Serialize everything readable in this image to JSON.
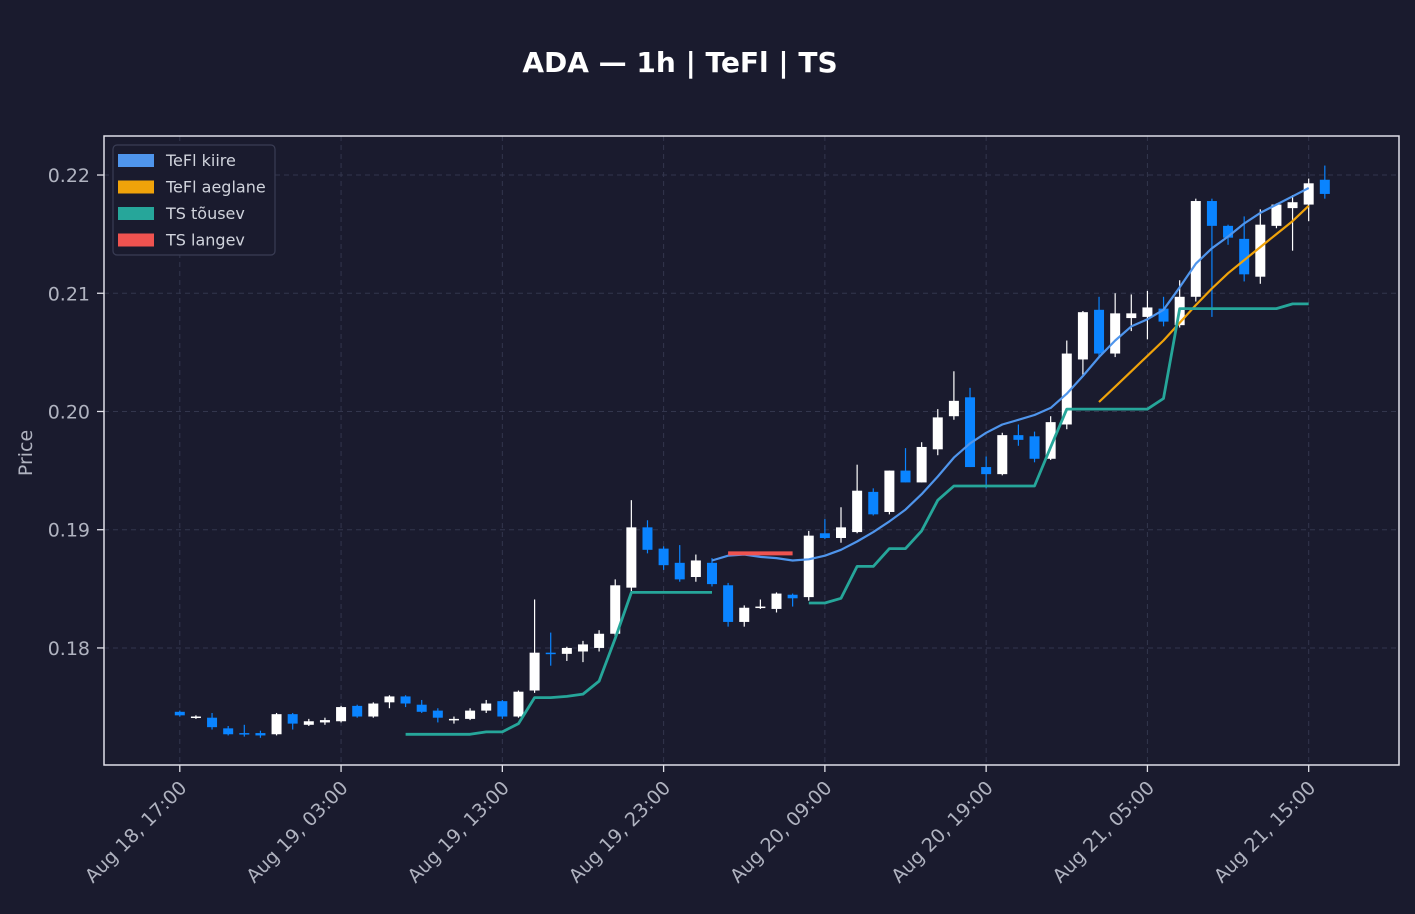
{
  "chart_data": {
    "type": "candlestick",
    "title": "ADA — 1h  |  TeFl  |  TS",
    "xlabel": "",
    "ylabel": "Price",
    "ylim": [
      0.1701,
      0.2233
    ],
    "x_range_hours": [
      -4.7,
      75.6
    ],
    "y_ticks": [
      {
        "value": 0.18,
        "label": "0.18"
      },
      {
        "value": 0.19,
        "label": "0.19"
      },
      {
        "value": 0.2,
        "label": "0.20"
      },
      {
        "value": 0.21,
        "label": "0.21"
      },
      {
        "value": 0.22,
        "label": "0.22"
      }
    ],
    "x_ticks": [
      {
        "hour": 0,
        "label": "Aug 18, 17:00"
      },
      {
        "hour": 10,
        "label": "Aug 19, 03:00"
      },
      {
        "hour": 20,
        "label": "Aug 19, 13:00"
      },
      {
        "hour": 30,
        "label": "Aug 19, 23:00"
      },
      {
        "hour": 40,
        "label": "Aug 20, 09:00"
      },
      {
        "hour": 50,
        "label": "Aug 20, 19:00"
      },
      {
        "hour": 60,
        "label": "Aug 21, 05:00"
      },
      {
        "hour": 70,
        "label": "Aug 21, 15:00"
      }
    ],
    "grid": true,
    "legend_position": "top-left",
    "colors": {
      "background": "#1a1b2e",
      "up_candle": "#ffffff",
      "down_candle": "#0a84ff",
      "grid": "#33364d",
      "frame": "#e0e0e8"
    },
    "candles": [
      [
        0.1746,
        0.1747,
        0.1742,
        0.1743
      ],
      [
        0.1741,
        0.1743,
        0.174,
        0.1742
      ],
      [
        0.1741,
        0.1745,
        0.1731,
        0.1733
      ],
      [
        0.1732,
        0.1734,
        0.1726,
        0.1727
      ],
      [
        0.1728,
        0.1735,
        0.1725,
        0.1727
      ],
      [
        0.1728,
        0.173,
        0.1724,
        0.1726
      ],
      [
        0.1727,
        0.1745,
        0.1726,
        0.1744
      ],
      [
        0.1744,
        0.1745,
        0.1731,
        0.1736
      ],
      [
        0.1735,
        0.174,
        0.1734,
        0.1738
      ],
      [
        0.1737,
        0.1741,
        0.1735,
        0.1739
      ],
      [
        0.1738,
        0.1751,
        0.1737,
        0.175
      ],
      [
        0.1751,
        0.1752,
        0.1741,
        0.1742
      ],
      [
        0.1742,
        0.1754,
        0.1741,
        0.1753
      ],
      [
        0.1754,
        0.176,
        0.1749,
        0.1759
      ],
      [
        0.1759,
        0.176,
        0.175,
        0.1753
      ],
      [
        0.1752,
        0.1756,
        0.1745,
        0.1746
      ],
      [
        0.1747,
        0.1749,
        0.1737,
        0.1741
      ],
      [
        0.174,
        0.1742,
        0.1736,
        0.174
      ],
      [
        0.174,
        0.1749,
        0.1739,
        0.1747
      ],
      [
        0.1747,
        0.1756,
        0.1745,
        0.1753
      ],
      [
        0.1755,
        0.1756,
        0.174,
        0.1742
      ],
      [
        0.1742,
        0.1764,
        0.1741,
        0.1763
      ],
      [
        0.1764,
        0.1841,
        0.1762,
        0.1796
      ],
      [
        0.1796,
        0.1813,
        0.1785,
        0.1795
      ],
      [
        0.1795,
        0.1801,
        0.1789,
        0.18
      ],
      [
        0.1797,
        0.1806,
        0.1788,
        0.1803
      ],
      [
        0.18,
        0.1815,
        0.1797,
        0.1812
      ],
      [
        0.1812,
        0.1858,
        0.181,
        0.1853
      ],
      [
        0.1851,
        0.1925,
        0.1848,
        0.1902
      ],
      [
        0.1902,
        0.1908,
        0.188,
        0.1883
      ],
      [
        0.1884,
        0.1886,
        0.1866,
        0.187
      ],
      [
        0.1872,
        0.1887,
        0.1856,
        0.1858
      ],
      [
        0.186,
        0.1879,
        0.1856,
        0.1874
      ],
      [
        0.1872,
        0.1876,
        0.1852,
        0.1854
      ],
      [
        0.1853,
        0.1855,
        0.1818,
        0.1822
      ],
      [
        0.1822,
        0.1836,
        0.1818,
        0.1834
      ],
      [
        0.1834,
        0.1841,
        0.1833,
        0.1835
      ],
      [
        0.1833,
        0.1847,
        0.183,
        0.1846
      ],
      [
        0.1845,
        0.1846,
        0.1835,
        0.1842
      ],
      [
        0.1843,
        0.1899,
        0.184,
        0.1895
      ],
      [
        0.1897,
        0.1909,
        0.1892,
        0.1893
      ],
      [
        0.1893,
        0.1919,
        0.1889,
        0.1902
      ],
      [
        0.1898,
        0.1955,
        0.1897,
        0.1933
      ],
      [
        0.1932,
        0.1935,
        0.1912,
        0.1913
      ],
      [
        0.1915,
        0.195,
        0.1913,
        0.195
      ],
      [
        0.195,
        0.1969,
        0.194,
        0.194
      ],
      [
        0.194,
        0.1974,
        0.194,
        0.197
      ],
      [
        0.1968,
        0.2002,
        0.1963,
        0.1995
      ],
      [
        0.1996,
        0.2034,
        0.1993,
        0.2009
      ],
      [
        0.2012,
        0.202,
        0.1953,
        0.1953
      ],
      [
        0.1953,
        0.1962,
        0.1935,
        0.1947
      ],
      [
        0.1947,
        0.1982,
        0.1946,
        0.198
      ],
      [
        0.198,
        0.1989,
        0.1971,
        0.1976
      ],
      [
        0.1979,
        0.1983,
        0.1957,
        0.196
      ],
      [
        0.196,
        0.1996,
        0.1959,
        0.1991
      ],
      [
        0.1989,
        0.206,
        0.1985,
        0.2049
      ],
      [
        0.2044,
        0.2085,
        0.2031,
        0.2084
      ],
      [
        0.2086,
        0.2097,
        0.2047,
        0.2049
      ],
      [
        0.2049,
        0.21,
        0.2046,
        0.2083
      ],
      [
        0.2079,
        0.2099,
        0.2068,
        0.2083
      ],
      [
        0.208,
        0.2102,
        0.2061,
        0.2088
      ],
      [
        0.2087,
        0.2097,
        0.2072,
        0.2076
      ],
      [
        0.2073,
        0.2111,
        0.2071,
        0.2097
      ],
      [
        0.2097,
        0.218,
        0.2093,
        0.2178
      ],
      [
        0.2178,
        0.218,
        0.208,
        0.2157
      ],
      [
        0.2157,
        0.2158,
        0.2141,
        0.2147
      ],
      [
        0.2146,
        0.2165,
        0.211,
        0.2116
      ],
      [
        0.2114,
        0.2171,
        0.2108,
        0.2158
      ],
      [
        0.2157,
        0.2176,
        0.2155,
        0.2175
      ],
      [
        0.2172,
        0.2183,
        0.2136,
        0.2177
      ],
      [
        0.2175,
        0.2197,
        0.2161,
        0.2193
      ],
      [
        0.2196,
        0.2208,
        0.218,
        0.2184
      ]
    ],
    "series": [
      {
        "name": "TeFl kiire",
        "color": "#4f95ec",
        "width": 2.2,
        "segments": [
          [
            [
              33,
              0.1874
            ],
            [
              34,
              0.1878
            ],
            [
              35,
              0.1879
            ],
            [
              36,
              0.1877
            ],
            [
              37,
              0.1876
            ],
            [
              38,
              0.1874
            ],
            [
              39,
              0.1875
            ],
            [
              40,
              0.1878
            ],
            [
              41,
              0.1883
            ],
            [
              42,
              0.189
            ],
            [
              43,
              0.1898
            ],
            [
              44,
              0.1907
            ],
            [
              45,
              0.1917
            ],
            [
              46,
              0.193
            ],
            [
              47,
              0.1945
            ],
            [
              48,
              0.1961
            ],
            [
              49,
              0.1973
            ],
            [
              50,
              0.1982
            ],
            [
              51,
              0.1989
            ],
            [
              52,
              0.1993
            ],
            [
              53,
              0.1997
            ],
            [
              54,
              0.2003
            ],
            [
              55,
              0.2015
            ],
            [
              56,
              0.203
            ],
            [
              57,
              0.2046
            ],
            [
              58,
              0.206
            ],
            [
              59,
              0.2072
            ],
            [
              60,
              0.2078
            ],
            [
              61,
              0.2086
            ],
            [
              62,
              0.2105
            ],
            [
              63,
              0.2125
            ],
            [
              64,
              0.2138
            ],
            [
              65,
              0.2148
            ],
            [
              66,
              0.2159
            ],
            [
              67,
              0.2168
            ],
            [
              68,
              0.2175
            ],
            [
              69,
              0.2182
            ],
            [
              70,
              0.2189
            ]
          ]
        ]
      },
      {
        "name": "TeFl aeglane",
        "color": "#f0a30a",
        "width": 2.2,
        "segments": [
          [
            [
              57,
              0.2008
            ],
            [
              58,
              0.2021
            ],
            [
              59,
              0.2034
            ],
            [
              60,
              0.2047
            ],
            [
              61,
              0.206
            ],
            [
              62,
              0.2075
            ],
            [
              63,
              0.209
            ],
            [
              64,
              0.2104
            ],
            [
              65,
              0.2117
            ],
            [
              66,
              0.2128
            ],
            [
              67,
              0.2139
            ],
            [
              68,
              0.215
            ],
            [
              69,
              0.2161
            ],
            [
              70,
              0.2174
            ]
          ]
        ]
      },
      {
        "name": "TS tõusev",
        "color": "#26a69a",
        "width": 2.8,
        "segments": [
          [
            [
              14,
              0.1727
            ],
            [
              15,
              0.1727
            ],
            [
              16,
              0.1727
            ],
            [
              17,
              0.1727
            ],
            [
              18,
              0.1727
            ],
            [
              19,
              0.1729
            ],
            [
              20,
              0.1729
            ],
            [
              21,
              0.1736
            ],
            [
              22,
              0.1758
            ],
            [
              23,
              0.1758
            ],
            [
              24,
              0.1759
            ],
            [
              25,
              0.1761
            ],
            [
              26,
              0.1772
            ],
            [
              27,
              0.1808
            ],
            [
              28,
              0.1847
            ],
            [
              29,
              0.1847
            ],
            [
              30,
              0.1847
            ],
            [
              31,
              0.1847
            ],
            [
              32,
              0.1847
            ],
            [
              33,
              0.1847
            ]
          ],
          [
            [
              39,
              0.1838
            ],
            [
              40,
              0.1838
            ],
            [
              41,
              0.1842
            ],
            [
              42,
              0.1869
            ],
            [
              43,
              0.1869
            ],
            [
              44,
              0.1884
            ],
            [
              45,
              0.1884
            ],
            [
              46,
              0.1899
            ],
            [
              47,
              0.1925
            ],
            [
              48,
              0.1937
            ],
            [
              49,
              0.1937
            ],
            [
              50,
              0.1937
            ],
            [
              51,
              0.1937
            ],
            [
              52,
              0.1937
            ],
            [
              53,
              0.1937
            ],
            [
              54,
              0.197
            ],
            [
              55,
              0.2002
            ],
            [
              56,
              0.2002
            ],
            [
              57,
              0.2002
            ],
            [
              58,
              0.2002
            ],
            [
              59,
              0.2002
            ],
            [
              60,
              0.2002
            ],
            [
              61,
              0.2011
            ],
            [
              62,
              0.2087
            ],
            [
              63,
              0.2087
            ],
            [
              64,
              0.2087
            ],
            [
              65,
              0.2087
            ],
            [
              66,
              0.2087
            ],
            [
              67,
              0.2087
            ],
            [
              68,
              0.2087
            ],
            [
              69,
              0.2091
            ],
            [
              70,
              0.2091
            ]
          ]
        ]
      },
      {
        "name": "TS langev",
        "color": "#ef5350",
        "width": 4,
        "segments": [
          [
            [
              34,
              0.188
            ],
            [
              35,
              0.188
            ],
            [
              36,
              0.188
            ],
            [
              37,
              0.188
            ],
            [
              38,
              0.188
            ]
          ]
        ]
      }
    ]
  }
}
